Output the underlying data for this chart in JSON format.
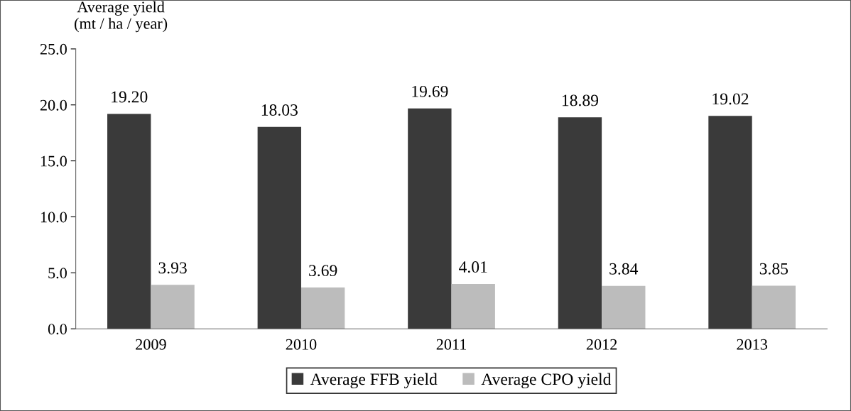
{
  "chart_data": {
    "type": "bar",
    "ylabel": "Average yield\n(mt / ha / year)",
    "categories": [
      "2009",
      "2010",
      "2011",
      "2012",
      "2013"
    ],
    "series": [
      {
        "name": "Average FFB yield",
        "color": "#3a3a3a",
        "values": [
          19.2,
          18.03,
          19.69,
          18.89,
          19.02
        ],
        "value_labels": [
          "19.20",
          "18.03",
          "19.69",
          "18.89",
          "19.02"
        ]
      },
      {
        "name": "Average CPO yield",
        "color": "#bcbcbc",
        "values": [
          3.93,
          3.69,
          4.01,
          3.84,
          3.85
        ],
        "value_labels": [
          "3.93",
          "3.69",
          "4.01",
          "3.84",
          "3.85"
        ]
      }
    ],
    "ylim": [
      0,
      25
    ],
    "yticks": [
      {
        "value": 0,
        "label": "0.0"
      },
      {
        "value": 5,
        "label": "5.0"
      },
      {
        "value": 10,
        "label": "10.0"
      },
      {
        "value": 15,
        "label": "15.0"
      },
      {
        "value": 20,
        "label": "20.0"
      },
      {
        "value": 25,
        "label": "25.0"
      }
    ],
    "grid": false,
    "legend": "bottom"
  }
}
